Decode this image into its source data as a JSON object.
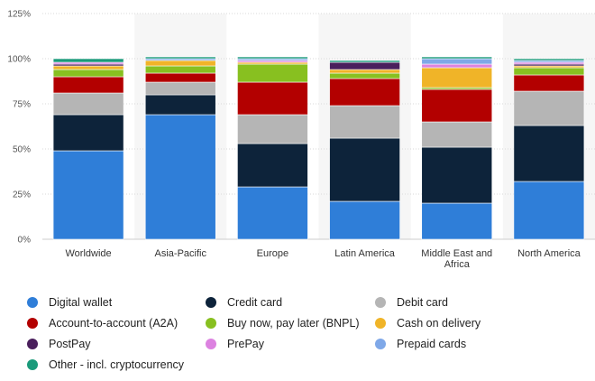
{
  "chart_data": {
    "type": "bar",
    "stacked": true,
    "categories": [
      "Worldwide",
      "Asia-Pacific",
      "Europe",
      "Latin America",
      "Middle East and Africa",
      "North America"
    ],
    "category_label_lines": [
      [
        "Worldwide"
      ],
      [
        "Asia-Pacific"
      ],
      [
        "Europe"
      ],
      [
        "Latin America"
      ],
      [
        "Middle East and",
        "Africa"
      ],
      [
        "North America"
      ]
    ],
    "ylim": [
      0,
      125
    ],
    "yticks": [
      0,
      25,
      50,
      75,
      100,
      125
    ],
    "ytick_labels": [
      "0%",
      "25%",
      "50%",
      "75%",
      "100%",
      "125%"
    ],
    "grid": true,
    "legend_position": "bottom",
    "series": [
      {
        "name": "Digital wallet",
        "color": "#2f7ed8",
        "values": [
          49,
          69,
          29,
          21,
          20,
          32
        ]
      },
      {
        "name": "Credit card",
        "color": "#0d233a",
        "values": [
          20,
          11,
          24,
          35,
          31,
          31
        ]
      },
      {
        "name": "Debit card",
        "color": "#b5b5b5",
        "values": [
          12,
          7,
          16,
          18,
          14,
          19
        ]
      },
      {
        "name": "Account-to-account (A2A)",
        "color": "#b30000",
        "values": [
          9,
          5,
          18,
          15,
          18,
          9
        ]
      },
      {
        "name": "Buy now, pay later (BNPL)",
        "color": "#88c020",
        "values": [
          4,
          4,
          10,
          3,
          1,
          4
        ]
      },
      {
        "name": "Cash on delivery",
        "color": "#f0b428",
        "values": [
          2,
          3,
          1,
          2,
          11,
          1
        ]
      },
      {
        "name": "PostPay",
        "color": "#4a1f5c",
        "values": [
          1,
          0,
          0,
          4,
          0,
          1
        ]
      },
      {
        "name": "PrePay",
        "color": "#dc82e0",
        "values": [
          1,
          0,
          1,
          0,
          2,
          1
        ]
      },
      {
        "name": "Prepaid cards",
        "color": "#7fa8e8",
        "values": [
          0,
          1,
          1,
          0,
          3,
          1
        ]
      },
      {
        "name": "Other - incl. cryptocurrency",
        "color": "#1a9a7a",
        "values": [
          2,
          1,
          1,
          1,
          1,
          1
        ]
      }
    ]
  }
}
